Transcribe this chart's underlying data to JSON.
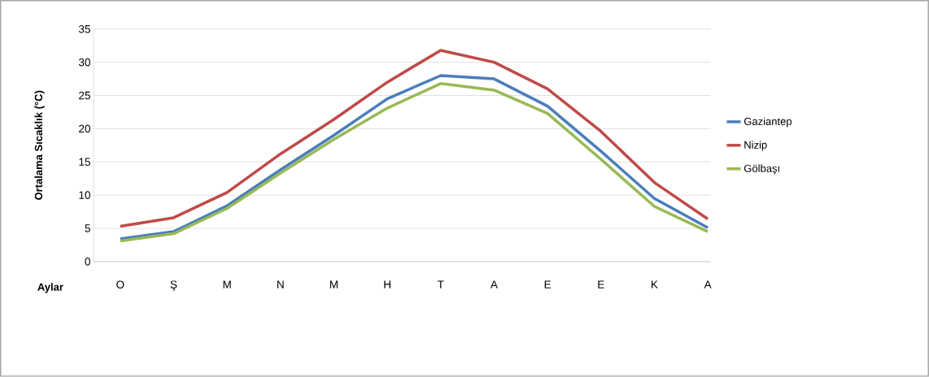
{
  "chart_data": {
    "type": "line",
    "xlabel": "Aylar",
    "ylabel": "Ortalama Sıcaklık (°C)",
    "categories": [
      "O",
      "Ş",
      "M",
      "N",
      "M",
      "H",
      "T",
      "A",
      "E",
      "E",
      "K",
      "A"
    ],
    "ylim": [
      0,
      35
    ],
    "yticks": [
      0,
      5,
      10,
      15,
      20,
      25,
      30,
      35
    ],
    "grid": "y",
    "legend": "right",
    "marker": "none",
    "line_style": "solid",
    "series": [
      {
        "name": "Gaziantep",
        "color": "#4a7ebb",
        "values": [
          3.4,
          4.5,
          8.4,
          13.8,
          19,
          24.5,
          28,
          27.5,
          23.4,
          16.6,
          9.5,
          5.1
        ]
      },
      {
        "name": "Nizip",
        "color": "#be4b48",
        "values": [
          5.3,
          6.6,
          10.4,
          16.2,
          21.4,
          27,
          31.8,
          30,
          26,
          19.6,
          11.9,
          6.4
        ]
      },
      {
        "name": "Gölbaşı",
        "color": "#98b954",
        "values": [
          3.1,
          4.2,
          8,
          13.3,
          18.4,
          23.1,
          26.8,
          25.8,
          22.3,
          15.4,
          8.3,
          4.5
        ]
      }
    ]
  }
}
